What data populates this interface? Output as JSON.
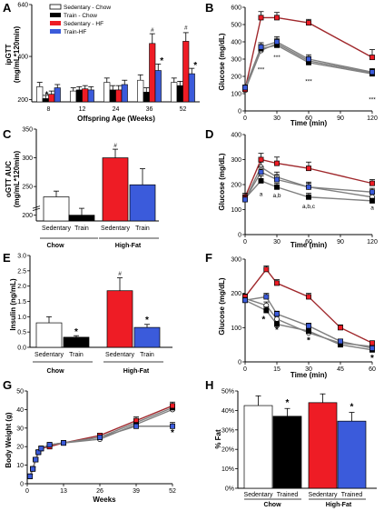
{
  "colors": {
    "sed_chow": "#ffffff",
    "train_chow": "#000000",
    "sed_hf": "#ee1c25",
    "train_hf": "#3b5bdb",
    "line_gray": "#808080",
    "line_darkred": "#a0282c"
  },
  "panels": {
    "A": {
      "label": "A",
      "ylabel_1": "ipGTT",
      "ylabel_2": "(mg/mL*120min)",
      "xlabel": "Offspring Age (Weeks)",
      "legend": [
        "Sedentary - Chow",
        "Train - Chow",
        "Sedentary - HF",
        "Train-HF"
      ]
    },
    "B": {
      "label": "B",
      "ylabel": "Glucose (mg/dL)",
      "xlabel": "Time (min)"
    },
    "C": {
      "label": "C",
      "ylabel_1": "oGTT AUC",
      "ylabel_2": "(mg/mL*120min)",
      "bar_labels": [
        "Sedentary",
        "Train",
        "Sedentary",
        "Train"
      ],
      "group_labels": [
        "Chow",
        "High-Fat"
      ]
    },
    "D": {
      "label": "D",
      "ylabel": "Glucose (mg/dL)",
      "xlabel": "Time (min)"
    },
    "E": {
      "label": "E",
      "ylabel": "Insulin (ng/mL)",
      "bar_labels": [
        "Sedentary",
        "Train",
        "Sedentary",
        "Train"
      ],
      "group_labels": [
        "Chow",
        "High-Fat"
      ]
    },
    "F": {
      "label": "F",
      "ylabel": "Glucose (mg/dL)",
      "xlabel": "Time (min)"
    },
    "G": {
      "label": "G",
      "ylabel": "Body Weight (g)",
      "xlabel": "Weeks"
    },
    "H": {
      "label": "H",
      "ylabel": "% Fat",
      "bar_labels": [
        "Sedentary",
        "Trained",
        "Sedentary",
        "Trained"
      ],
      "group_labels": [
        "Chow",
        "High-Fat"
      ]
    }
  },
  "chart_data": [
    {
      "panel": "A",
      "type": "bar",
      "categories": [
        "8",
        "12",
        "24",
        "36",
        "52"
      ],
      "ylim": [
        0,
        640
      ],
      "yticks": [
        0,
        200,
        400,
        640
      ],
      "y_break": true,
      "series": [
        {
          "name": "Sedentary - Chow",
          "values": [
            260,
            240,
            280,
            290,
            280
          ],
          "err": [
            20,
            15,
            20,
            25,
            20
          ]
        },
        {
          "name": "Train - Chow",
          "values": [
            205,
            245,
            245,
            235,
            265
          ],
          "err": [
            15,
            15,
            20,
            20,
            20
          ]
        },
        {
          "name": "Sedentary - HF",
          "values": [
            225,
            250,
            245,
            460,
            470
          ],
          "err": [
            15,
            15,
            20,
            45,
            40
          ]
        },
        {
          "name": "Train-HF",
          "values": [
            255,
            245,
            270,
            335,
            320
          ],
          "err": [
            15,
            15,
            20,
            30,
            25
          ]
        }
      ],
      "annotations": [
        {
          "category": "8",
          "text": "*"
        },
        {
          "category": "36",
          "text": "#"
        },
        {
          "category": "36",
          "text": "*"
        },
        {
          "category": "52",
          "text": "#"
        },
        {
          "category": "52",
          "text": "*"
        }
      ]
    },
    {
      "panel": "B",
      "type": "line",
      "x": [
        0,
        15,
        30,
        60,
        120
      ],
      "xlim": [
        0,
        120
      ],
      "ylim": [
        0,
        600
      ],
      "xticks": [
        0,
        30,
        60,
        90,
        120
      ],
      "yticks": [
        0,
        100,
        200,
        300,
        400,
        500,
        600
      ],
      "series": [
        {
          "values": [
            120,
            350,
            390,
            290,
            220
          ],
          "err": [
            15,
            25,
            30,
            25,
            20
          ]
        },
        {
          "values": [
            130,
            360,
            380,
            280,
            215
          ],
          "err": [
            15,
            25,
            30,
            25,
            20
          ]
        },
        {
          "values": [
            125,
            540,
            540,
            510,
            310
          ],
          "err": [
            20,
            35,
            30,
            20,
            45
          ]
        },
        {
          "values": [
            135,
            370,
            400,
            300,
            225
          ],
          "err": [
            15,
            25,
            30,
            25,
            20
          ]
        }
      ],
      "annotations": [
        "***",
        "***",
        "***",
        "***"
      ]
    },
    {
      "panel": "C",
      "type": "bar",
      "categories": [
        "Sedentary",
        "Train",
        "Sedentary",
        "Train"
      ],
      "groups": [
        "Chow",
        "Chow",
        "High-Fat",
        "High-Fat"
      ],
      "ylim": [
        190,
        350
      ],
      "yticks": [
        200,
        250,
        300,
        350
      ],
      "y_break": true,
      "values": [
        232,
        200,
        300,
        253
      ],
      "err": [
        10,
        12,
        15,
        28
      ],
      "annotations": [
        {
          "bar": 3,
          "text": "#"
        }
      ]
    },
    {
      "panel": "D",
      "type": "line",
      "x": [
        0,
        15,
        30,
        60,
        120
      ],
      "xlim": [
        0,
        120
      ],
      "ylim": [
        0,
        400
      ],
      "xticks": [
        0,
        30,
        60,
        90,
        120
      ],
      "yticks": [
        0,
        100,
        200,
        300,
        400
      ],
      "series": [
        {
          "values": [
            140,
            270,
            230,
            190,
            150
          ],
          "err": [
            15,
            20,
            20,
            15,
            15
          ]
        },
        {
          "values": [
            145,
            215,
            190,
            150,
            135
          ],
          "err": [
            15,
            20,
            15,
            15,
            10
          ]
        },
        {
          "values": [
            150,
            300,
            285,
            265,
            205
          ],
          "err": [
            15,
            25,
            25,
            25,
            15
          ]
        },
        {
          "values": [
            140,
            250,
            220,
            190,
            170
          ],
          "err": [
            15,
            20,
            20,
            20,
            15
          ]
        }
      ],
      "annotations": [
        "a",
        "a,b",
        "a,b,c",
        "a"
      ]
    },
    {
      "panel": "E",
      "type": "bar",
      "categories": [
        "Sedentary",
        "Train",
        "Sedentary",
        "Train"
      ],
      "groups": [
        "Chow",
        "Chow",
        "High-Fat",
        "High-Fat"
      ],
      "ylim": [
        0,
        3.0
      ],
      "yticks": [
        0.0,
        0.5,
        1.0,
        1.5,
        2.0,
        2.5,
        3.0
      ],
      "values": [
        0.8,
        0.33,
        1.85,
        0.65
      ],
      "err": [
        0.2,
        0.05,
        0.42,
        0.1
      ],
      "annotations": [
        {
          "bar": 2,
          "text": "*"
        },
        {
          "bar": 3,
          "text": "#"
        },
        {
          "bar": 4,
          "text": "*"
        }
      ]
    },
    {
      "panel": "F",
      "type": "line",
      "x": [
        0,
        10,
        15,
        30,
        45,
        60
      ],
      "xlim": [
        0,
        60
      ],
      "ylim": [
        0,
        300
      ],
      "xticks": [
        0,
        15,
        30,
        45,
        60
      ],
      "yticks": [
        0,
        100,
        200,
        300
      ],
      "series": [
        {
          "values": [
            185,
            165,
            125,
            85,
            55,
            45
          ],
          "err": [
            8,
            10,
            8,
            8,
            6,
            5
          ]
        },
        {
          "values": [
            180,
            150,
            110,
            90,
            50,
            35
          ],
          "err": [
            8,
            10,
            8,
            8,
            6,
            5
          ]
        },
        {
          "values": [
            190,
            270,
            230,
            190,
            100,
            55
          ],
          "err": [
            8,
            10,
            10,
            10,
            8,
            6
          ]
        },
        {
          "values": [
            180,
            190,
            140,
            105,
            60,
            40
          ],
          "err": [
            8,
            10,
            8,
            8,
            6,
            5
          ]
        }
      ],
      "annotations": [
        "*",
        "*",
        "*",
        "*"
      ]
    },
    {
      "panel": "G",
      "type": "line",
      "xlim": [
        0,
        52
      ],
      "ylim": [
        0,
        50
      ],
      "xticks": [
        0,
        13,
        26,
        39,
        52
      ],
      "yticks": [
        0,
        10,
        20,
        30,
        40,
        50
      ],
      "x": [
        1,
        2,
        3,
        4,
        5,
        8,
        13,
        26,
        39,
        52
      ],
      "series": [
        {
          "values": [
            4,
            8,
            13,
            17,
            19,
            21,
            22,
            24,
            32,
            40
          ],
          "err": [
            1,
            1,
            1,
            1,
            1,
            1,
            1,
            1,
            2,
            2
          ]
        },
        {
          "values": [
            4,
            8,
            13,
            17,
            19,
            21,
            22,
            25,
            33,
            41
          ],
          "err": [
            1,
            1,
            1,
            1,
            1,
            1,
            1,
            1,
            2,
            2
          ]
        },
        {
          "values": [
            4,
            8,
            13,
            17,
            19,
            20,
            22,
            26,
            34,
            42
          ],
          "err": [
            1,
            1,
            1,
            1,
            1,
            1,
            1,
            1,
            2,
            2
          ]
        },
        {
          "values": [
            4,
            8,
            13,
            17,
            19,
            21,
            22,
            25,
            31,
            31
          ],
          "err": [
            1,
            1,
            1,
            1,
            1,
            1,
            1,
            1,
            2,
            2
          ]
        }
      ],
      "annotations": [
        "*"
      ]
    },
    {
      "panel": "H",
      "type": "bar",
      "categories": [
        "Sedentary",
        "Trained",
        "Sedentary",
        "Trained"
      ],
      "groups": [
        "Chow",
        "Chow",
        "High-Fat",
        "High-Fat"
      ],
      "ylim": [
        0,
        50
      ],
      "yticks": [
        0,
        10,
        20,
        30,
        40,
        50
      ],
      "values": [
        42.5,
        37,
        44,
        34.5
      ],
      "err": [
        5,
        4,
        4.5,
        4.5
      ],
      "annotations": [
        {
          "bar": 2,
          "text": "*"
        },
        {
          "bar": 4,
          "text": "*"
        }
      ]
    }
  ]
}
